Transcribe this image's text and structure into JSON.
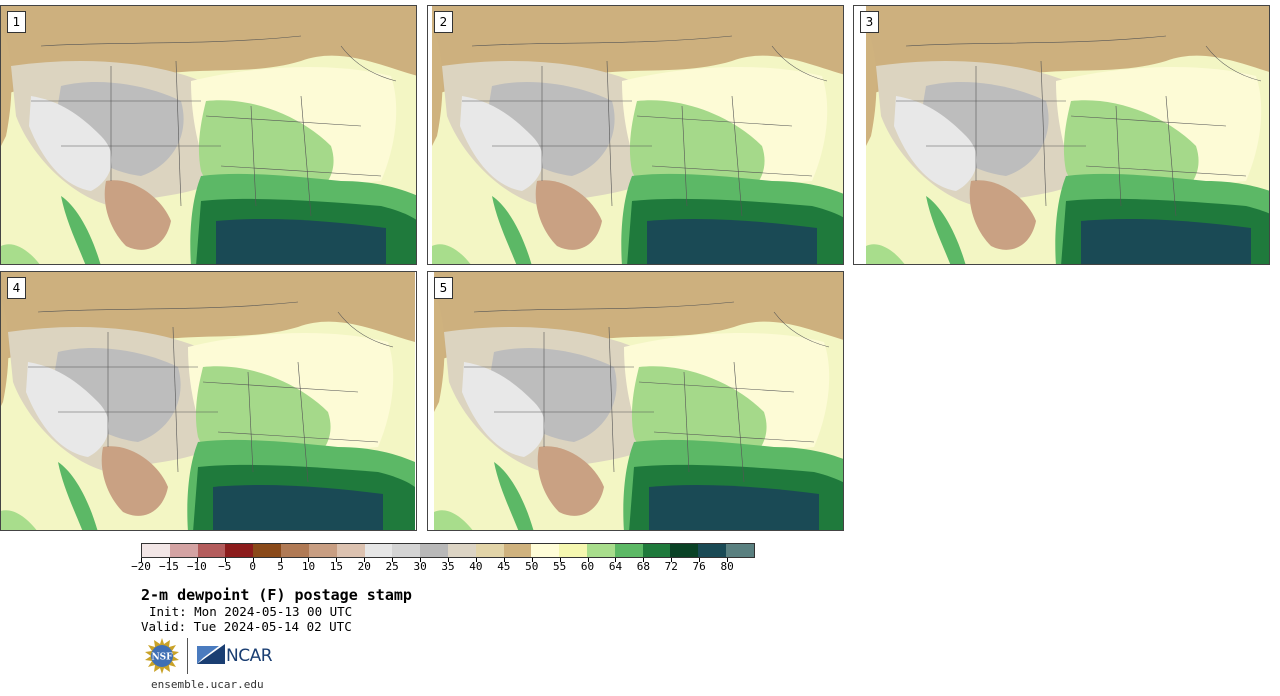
{
  "panels": [
    {
      "label": "1"
    },
    {
      "label": "2"
    },
    {
      "label": "3"
    },
    {
      "label": "4"
    },
    {
      "label": "5"
    }
  ],
  "colorbar": {
    "colors": [
      "#f2e6e6",
      "#d4a3a3",
      "#b35c5c",
      "#8c1c1c",
      "#8a4a1a",
      "#b07a55",
      "#c89e82",
      "#dcc2b0",
      "#e6e6e6",
      "#d4d4d4",
      "#b8b8b8",
      "#dcd4c4",
      "#e2d4a8",
      "#cfb27e",
      "#fffdd8",
      "#f5f7b0",
      "#a8dd8c",
      "#5cb865",
      "#1f7a3c",
      "#0a4226",
      "#1a4a55",
      "#5a8080"
    ],
    "ticks": [
      "−20",
      "−15",
      "−10",
      "−5",
      "0",
      "5",
      "10",
      "15",
      "20",
      "25",
      "30",
      "35",
      "40",
      "45",
      "50",
      "55",
      "60",
      "64",
      "68",
      "72",
      "76",
      "80"
    ]
  },
  "title": "2-m dewpoint (F) postage stamp",
  "init": "Init: Mon 2024-05-13 00 UTC",
  "valid": "Valid: Tue 2024-05-14 02 UTC",
  "logo": {
    "nsf": "NSF",
    "ncar": "NCAR"
  },
  "url": "ensemble.ucar.edu"
}
